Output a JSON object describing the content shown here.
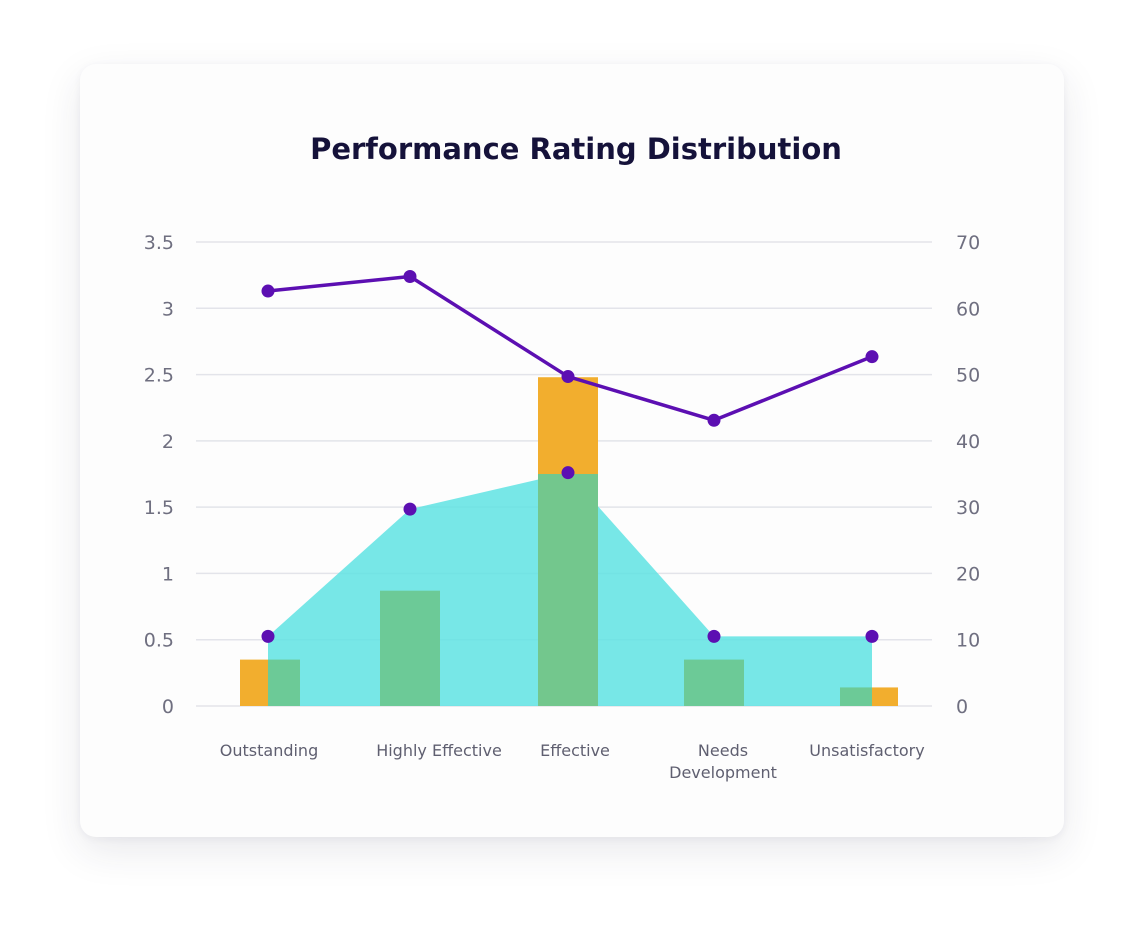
{
  "chart_data": {
    "type": "bar",
    "title": "Performance Rating Distribution",
    "categories": [
      "Outstanding",
      "Highly Effective",
      "Effective",
      "Needs Development",
      "Unsatisfactory"
    ],
    "category_lines": [
      [
        "Outstanding"
      ],
      [
        "Highly Effective"
      ],
      [
        "Effective"
      ],
      [
        "Needs",
        "Development"
      ],
      [
        "Unsatisfactory"
      ]
    ],
    "y_left": {
      "ticks": [
        "0",
        "0.5",
        "1",
        "1.5",
        "2",
        "2.5",
        "3",
        "3.5"
      ],
      "lim": [
        0,
        3.5
      ]
    },
    "y_right": {
      "ticks": [
        "0",
        "10",
        "20",
        "30",
        "40",
        "50",
        "60",
        "70"
      ],
      "lim": [
        0,
        70
      ]
    },
    "grid": true,
    "series": [
      {
        "type": "bar",
        "axis": "left",
        "color": "#f2ae2e",
        "values": [
          0.35,
          0,
          2.48,
          0,
          0.14
        ]
      },
      {
        "type": "bar",
        "axis": "left",
        "color": "#6cc892",
        "values": [
          0.35,
          0.87,
          1.75,
          0.35,
          0.14
        ]
      },
      {
        "type": "area",
        "axis": "right",
        "color": "#5fe3e3",
        "values": [
          10.5,
          29.7,
          35.2,
          10.5,
          10.5
        ]
      },
      {
        "type": "line",
        "axis": "right",
        "color": "#5c0fb2",
        "values": [
          62.6,
          64.8,
          49.7,
          43.1,
          52.7
        ]
      }
    ]
  }
}
